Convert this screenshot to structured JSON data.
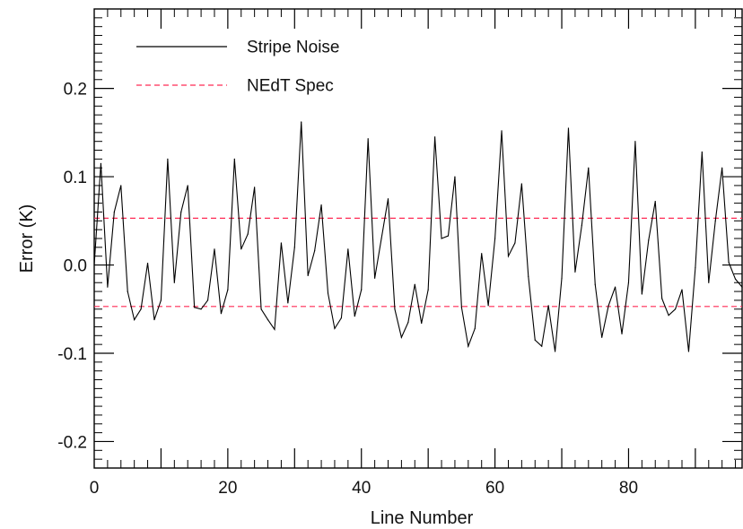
{
  "chart_data": {
    "type": "line",
    "title": "",
    "xlabel": "Line Number",
    "ylabel": "Error (K)",
    "xlim": [
      0,
      97
    ],
    "ylim": [
      -0.23,
      0.29
    ],
    "x_ticks": [
      0,
      20,
      40,
      60,
      80
    ],
    "x_tick_labels": [
      "0",
      "20",
      "40",
      "60",
      "80"
    ],
    "y_ticks": [
      -0.2,
      -0.1,
      0.0,
      0.1,
      0.2
    ],
    "y_tick_labels": [
      "-0.2",
      "-0.1",
      "0.0",
      "0.1",
      "0.2"
    ],
    "grid": false,
    "legend_position": "top-left",
    "series": [
      {
        "name": "Stripe Noise",
        "color": "#000000",
        "style": "solid",
        "x": [
          0,
          1,
          2,
          3,
          4,
          5,
          6,
          7,
          8,
          9,
          10,
          11,
          12,
          13,
          14,
          15,
          16,
          17,
          18,
          19,
          20,
          21,
          22,
          23,
          24,
          25,
          26,
          27,
          28,
          29,
          30,
          31,
          32,
          33,
          34,
          35,
          36,
          37,
          38,
          39,
          40,
          41,
          42,
          43,
          44,
          45,
          46,
          47,
          48,
          49,
          50,
          51,
          52,
          53,
          54,
          55,
          56,
          57,
          58,
          59,
          60,
          61,
          62,
          63,
          64,
          65,
          66,
          67,
          68,
          69,
          70,
          71,
          72,
          73,
          74,
          75,
          76,
          77,
          78,
          79,
          80,
          81,
          82,
          83,
          84,
          85,
          86,
          87,
          88,
          89,
          90,
          91,
          92,
          93,
          94,
          95,
          96,
          97
        ],
        "y": [
          0.0,
          0.115,
          -0.025,
          0.06,
          0.09,
          -0.03,
          -0.062,
          -0.05,
          0.002,
          -0.062,
          -0.04,
          0.12,
          -0.02,
          0.06,
          0.09,
          -0.048,
          -0.05,
          -0.04,
          0.018,
          -0.055,
          -0.028,
          0.12,
          0.018,
          0.035,
          0.088,
          -0.05,
          -0.062,
          -0.073,
          0.025,
          -0.043,
          0.02,
          0.162,
          -0.012,
          0.016,
          0.068,
          -0.032,
          -0.072,
          -0.06,
          0.018,
          -0.058,
          -0.028,
          0.143,
          -0.015,
          0.03,
          0.075,
          -0.05,
          -0.082,
          -0.065,
          -0.022,
          -0.066,
          -0.028,
          0.145,
          0.03,
          0.033,
          0.1,
          -0.048,
          -0.092,
          -0.072,
          0.013,
          -0.046,
          0.03,
          0.152,
          0.01,
          0.025,
          0.092,
          -0.013,
          -0.085,
          -0.092,
          -0.046,
          -0.098,
          -0.015,
          0.155,
          -0.008,
          0.045,
          0.11,
          -0.022,
          -0.082,
          -0.046,
          -0.025,
          -0.078,
          -0.02,
          0.14,
          -0.033,
          0.028,
          0.072,
          -0.038,
          -0.057,
          -0.05,
          -0.028,
          -0.098,
          -0.003,
          0.128,
          -0.02,
          0.05,
          0.11,
          0.003,
          -0.016,
          -0.025
        ]
      },
      {
        "name": "NEdT Spec",
        "color": "#ff2a55",
        "style": "dashed",
        "x": [
          0,
          97
        ],
        "y": [
          0.053,
          0.053
        ],
        "mirrored_y": -0.047
      }
    ]
  }
}
